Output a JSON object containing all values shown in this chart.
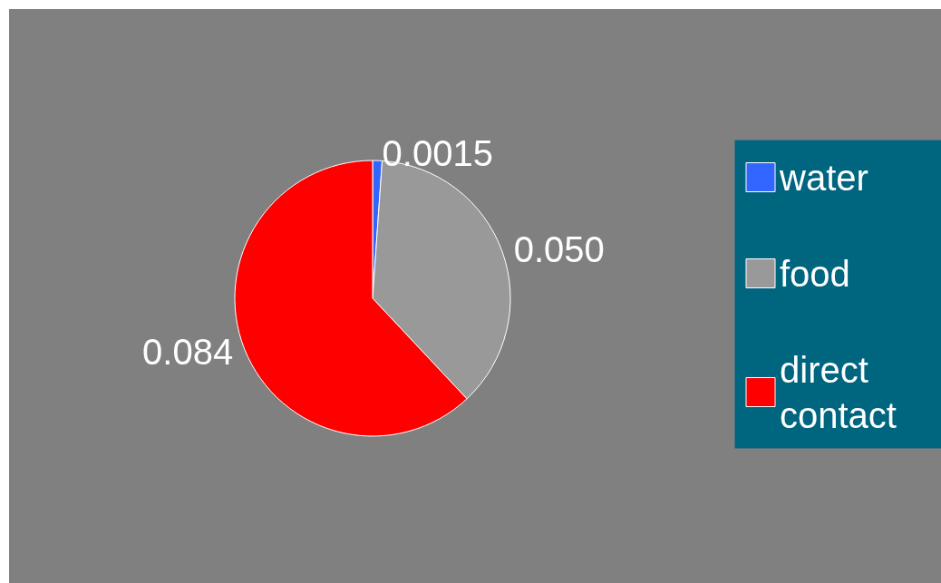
{
  "chart_data": {
    "type": "pie",
    "categories": [
      "water",
      "food",
      "direct contact"
    ],
    "values": [
      0.0015,
      0.05,
      0.084
    ],
    "value_labels": [
      "0.0015",
      "0.050",
      "0.084"
    ],
    "colors": [
      "#3366ff",
      "#999999",
      "#ff0000"
    ],
    "legend": "right"
  }
}
